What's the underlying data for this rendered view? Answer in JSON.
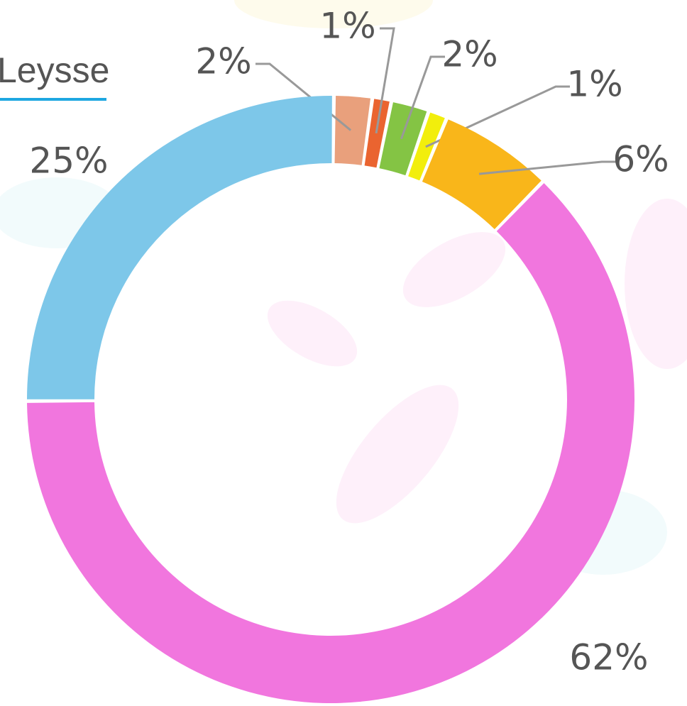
{
  "chart_data": {
    "type": "pie",
    "title": "Leysse",
    "values": [
      2,
      1,
      2,
      1,
      6,
      62,
      25
    ],
    "value_labels": [
      "2%",
      "1%",
      "2%",
      "1%",
      "6%",
      "62%",
      "25%"
    ],
    "colors": [
      "#e9a07c",
      "#ea6430",
      "#84c444",
      "#f2ee0c",
      "#f9b61a",
      "#f176de",
      "#7dc7e9"
    ],
    "donut": true
  }
}
